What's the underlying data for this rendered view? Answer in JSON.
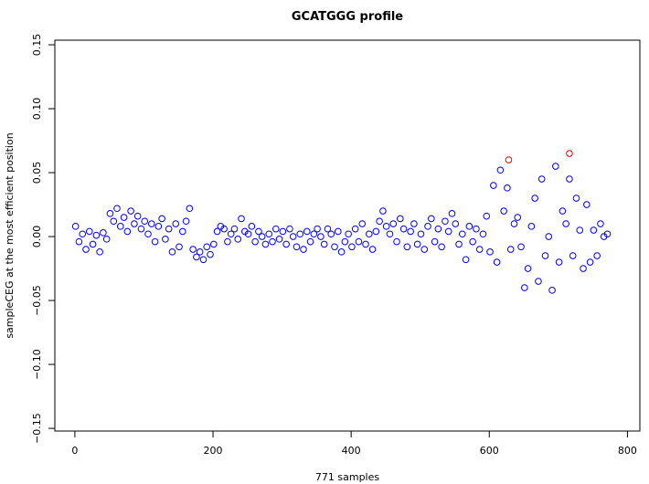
{
  "chart_data": {
    "type": "scatter",
    "title": "GCATGGG profile",
    "x_label": "771 samples",
    "y_label": "sampleCEG at the most efficient position",
    "xlim": [
      -29,
      818
    ],
    "ylim": [
      -0.1521,
      0.1536
    ],
    "xticks": [
      0,
      200,
      400,
      600,
      800
    ],
    "yticks": [
      {
        "value": -0.15,
        "label": "−0.15"
      },
      {
        "value": -0.1,
        "label": "−0.10"
      },
      {
        "value": -0.05,
        "label": "−0.05"
      },
      {
        "value": 0,
        "label": "0.00"
      },
      {
        "value": 0.05,
        "label": "0.05"
      },
      {
        "value": 0.1,
        "label": "0.10"
      },
      {
        "value": 0.15,
        "label": "0.15"
      }
    ],
    "series": [
      {
        "color": "#0000ff",
        "x": [
          1,
          6,
          11,
          16,
          21,
          26,
          31,
          36,
          41,
          46,
          51,
          56,
          61,
          66,
          71,
          76,
          81,
          86,
          91,
          96,
          101,
          106,
          111,
          116,
          121,
          126,
          131,
          136,
          141,
          146,
          151,
          156,
          161,
          166,
          171,
          176,
          181,
          186,
          191,
          196,
          201,
          206,
          211,
          216,
          221,
          226,
          231,
          236,
          241,
          246,
          251,
          256,
          261,
          266,
          271,
          276,
          281,
          286,
          291,
          296,
          301,
          306,
          311,
          316,
          321,
          326,
          331,
          336,
          341,
          346,
          351,
          356,
          361,
          366,
          371,
          376,
          381,
          386,
          391,
          396,
          401,
          406,
          411,
          416,
          421,
          426,
          431,
          436,
          441,
          446,
          451,
          456,
          461,
          466,
          471,
          476,
          481,
          486,
          491,
          496,
          501,
          506,
          511,
          516,
          521,
          526,
          531,
          536,
          541,
          546,
          551,
          556,
          561,
          566,
          571,
          576,
          581,
          586,
          591,
          596,
          601,
          606,
          611,
          616,
          621,
          626,
          631,
          636,
          641,
          646,
          651,
          656,
          661,
          666,
          671,
          676,
          681,
          686,
          691,
          696,
          701,
          706,
          711,
          716,
          721,
          726,
          731,
          736,
          741,
          746,
          751,
          756,
          761,
          766,
          771
        ],
        "y": [
          0.008,
          -0.004,
          0.002,
          -0.01,
          0.004,
          -0.006,
          0.001,
          -0.012,
          0.003,
          -0.002,
          0.018,
          0.012,
          0.022,
          0.008,
          0.015,
          0.004,
          0.02,
          0.01,
          0.016,
          0.006,
          0.012,
          0.002,
          0.01,
          -0.004,
          0.008,
          0.014,
          -0.002,
          0.006,
          -0.012,
          0.01,
          -0.008,
          0.004,
          0.012,
          0.022,
          -0.01,
          -0.016,
          -0.012,
          -0.018,
          -0.008,
          -0.014,
          -0.006,
          0.004,
          0.008,
          0.006,
          -0.004,
          0.002,
          0.006,
          -0.002,
          0.014,
          0.004,
          0.002,
          0.008,
          -0.004,
          0.004,
          0.0,
          -0.006,
          0.002,
          -0.004,
          0.006,
          -0.002,
          0.004,
          -0.006,
          0.006,
          0.0,
          -0.008,
          0.002,
          -0.01,
          0.004,
          -0.004,
          0.002,
          0.006,
          0.0,
          -0.006,
          0.006,
          0.002,
          -0.008,
          0.004,
          -0.012,
          -0.004,
          0.002,
          -0.008,
          0.006,
          -0.004,
          0.01,
          -0.006,
          0.002,
          -0.01,
          0.004,
          0.012,
          0.02,
          0.008,
          0.002,
          0.01,
          -0.004,
          0.014,
          0.006,
          -0.008,
          0.004,
          0.01,
          -0.006,
          0.002,
          -0.01,
          0.008,
          0.014,
          -0.004,
          0.006,
          -0.008,
          0.012,
          0.004,
          0.018,
          0.01,
          -0.006,
          0.002,
          -0.018,
          0.008,
          -0.004,
          0.006,
          -0.01,
          0.002,
          0.016,
          -0.012,
          0.04,
          -0.02,
          0.052,
          0.02,
          0.038,
          -0.01,
          0.01,
          0.015,
          -0.008,
          -0.04,
          -0.025,
          0.008,
          0.03,
          -0.035,
          0.045,
          -0.015,
          0.0,
          -0.042,
          0.055,
          -0.02,
          0.02,
          0.01,
          0.045,
          -0.015,
          0.03,
          0.005,
          -0.025,
          0.025,
          -0.02,
          0.005,
          -0.015,
          0.01,
          0.0,
          0.002
        ]
      },
      {
        "color": "#ff0000",
        "x": [
          628,
          716
        ],
        "y": [
          0.06,
          0.065
        ]
      }
    ]
  }
}
